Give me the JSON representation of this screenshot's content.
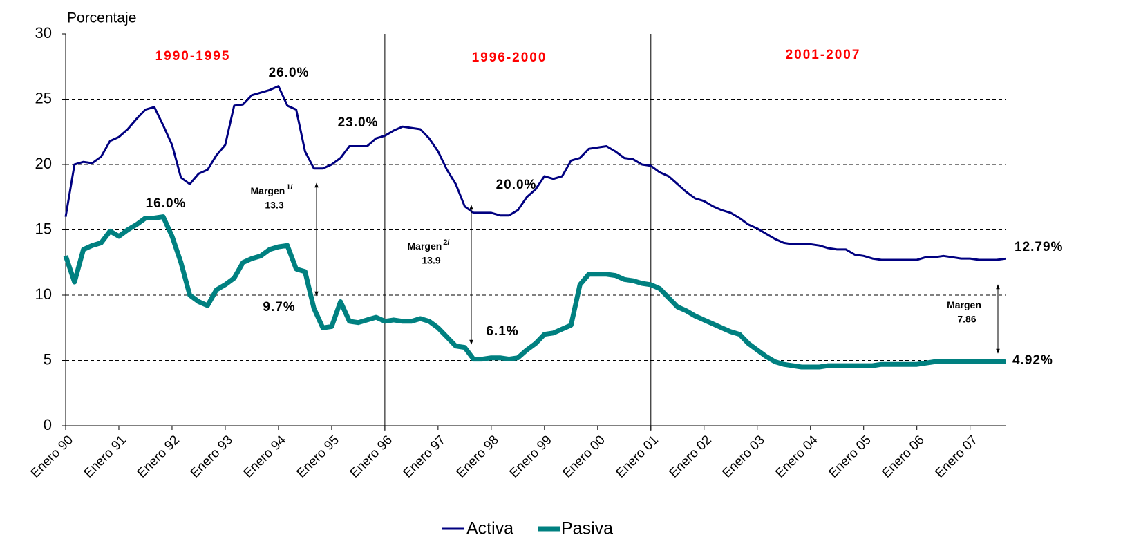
{
  "chart_data": {
    "type": "line",
    "y_title": "Porcentaje",
    "categories": [
      "Enero 90",
      null,
      null,
      null,
      null,
      null,
      "Enero 91",
      null,
      null,
      null,
      null,
      null,
      "Enero 92",
      null,
      null,
      null,
      null,
      null,
      "Enero 93",
      null,
      null,
      null,
      null,
      null,
      "Enero 94",
      null,
      null,
      null,
      null,
      null,
      "Enero 95",
      null,
      null,
      null,
      null,
      null,
      "Enero 96",
      null,
      null,
      null,
      null,
      null,
      "Enero 97",
      null,
      null,
      null,
      null,
      null,
      "Enero 98",
      null,
      null,
      null,
      null,
      null,
      "Enero 99",
      null,
      null,
      null,
      null,
      null,
      "Enero 00",
      null,
      null,
      null,
      null,
      null,
      "Enero 01",
      null,
      null,
      null,
      null,
      null,
      "Enero 02",
      null,
      null,
      null,
      null,
      null,
      "Enero 03",
      null,
      null,
      null,
      null,
      null,
      "Enero 04",
      null,
      null,
      null,
      null,
      null,
      "Enero 05",
      null,
      null,
      null,
      null,
      null,
      "Enero 06",
      null,
      null,
      null,
      null,
      null,
      "Enero 07",
      null,
      null,
      null,
      null
    ],
    "series": [
      {
        "name": "Activa",
        "color": "#000080",
        "values": [
          16.0,
          20.0,
          20.2,
          20.1,
          20.6,
          21.8,
          22.1,
          22.7,
          23.5,
          24.2,
          24.4,
          23.0,
          21.5,
          19.0,
          18.5,
          19.3,
          19.6,
          20.7,
          21.5,
          24.5,
          24.6,
          25.3,
          25.5,
          25.7,
          26.0,
          24.5,
          24.2,
          21.0,
          19.7,
          19.7,
          20.0,
          20.5,
          21.4,
          21.4,
          21.4,
          22.0,
          22.2,
          22.6,
          22.9,
          22.8,
          22.7,
          22.0,
          21.0,
          19.6,
          18.5,
          16.8,
          16.3,
          16.3,
          16.3,
          16.1,
          16.1,
          16.5,
          17.5,
          18.1,
          19.1,
          18.9,
          19.1,
          20.3,
          20.5,
          21.2,
          21.3,
          21.4,
          21.0,
          20.5,
          20.4,
          20.0,
          19.9,
          19.4,
          19.1,
          18.5,
          17.9,
          17.4,
          17.2,
          16.8,
          16.5,
          16.3,
          15.9,
          15.4,
          15.1,
          14.7,
          14.3,
          14.0,
          13.9,
          13.9,
          13.9,
          13.8,
          13.6,
          13.5,
          13.5,
          13.1,
          13.0,
          12.8,
          12.7,
          12.7,
          12.7,
          12.7,
          12.7,
          12.9,
          12.9,
          13.0,
          12.9,
          12.8,
          12.8,
          12.7,
          12.7,
          12.7,
          12.79
        ]
      },
      {
        "name": "Pasiva",
        "color": "#008080",
        "values": [
          13.0,
          11.0,
          13.5,
          13.8,
          14.0,
          14.9,
          14.5,
          15.0,
          15.4,
          15.9,
          15.9,
          16.0,
          14.5,
          12.5,
          10.0,
          9.5,
          9.2,
          10.4,
          10.8,
          11.3,
          12.5,
          12.8,
          13.0,
          13.5,
          13.7,
          13.8,
          12.0,
          11.8,
          9.0,
          7.5,
          7.6,
          9.5,
          8.0,
          7.9,
          8.1,
          8.3,
          8.0,
          8.1,
          8.0,
          8.0,
          8.2,
          8.0,
          7.5,
          6.8,
          6.1,
          6.0,
          5.1,
          5.1,
          5.2,
          5.2,
          5.1,
          5.2,
          5.8,
          6.3,
          7.0,
          7.1,
          7.4,
          7.7,
          10.8,
          11.6,
          11.6,
          11.6,
          11.5,
          11.2,
          11.1,
          10.9,
          10.8,
          10.5,
          9.8,
          9.1,
          8.8,
          8.4,
          8.1,
          7.8,
          7.5,
          7.2,
          7.0,
          6.3,
          5.8,
          5.3,
          4.9,
          4.7,
          4.6,
          4.5,
          4.5,
          4.5,
          4.6,
          4.6,
          4.6,
          4.6,
          4.6,
          4.6,
          4.7,
          4.7,
          4.7,
          4.7,
          4.7,
          4.8,
          4.9,
          4.9,
          4.9,
          4.9,
          4.9,
          4.9,
          4.9,
          4.9,
          4.92
        ]
      }
    ],
    "ylim": [
      0,
      30
    ],
    "yticks": [
      0,
      5,
      10,
      15,
      20,
      25,
      30
    ],
    "grid": true,
    "periods": [
      "1990-1995",
      "1996-2000",
      "2001-2007"
    ],
    "annotations": [
      "26.0%",
      "23.0%",
      "16.0%",
      "20.0%",
      "9.7%",
      "6.1%",
      "12.79%",
      "4.92%"
    ],
    "margins": [
      {
        "label": "Margen",
        "note": "1/",
        "value": 13.3
      },
      {
        "label": "Margen",
        "note": "2/",
        "value": 13.9
      },
      {
        "label": "Margen",
        "value": 7.86
      }
    ],
    "legend": "bottom"
  }
}
